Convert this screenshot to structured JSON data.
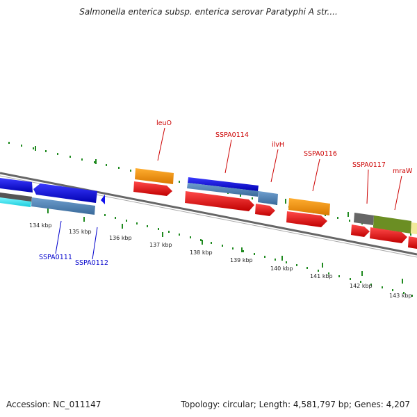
{
  "title": "Salmonella enterica subsp. enterica serovar Paratyphi A str....",
  "footer": {
    "accession": "Accession: NC_011147",
    "summary": "Topology: circular; Length: 4,581,797 bp; Genes: 4,207"
  },
  "colors": {
    "backbone": "#777777",
    "ticks": "#1f8a1f",
    "label_upper": "#cc0000",
    "label_lower": "#0000cc"
  },
  "ruler_labels": [
    "134 kbp",
    "135 kbp",
    "136 kbp",
    "137 kbp",
    "138 kbp",
    "139 kbp",
    "140 kbp",
    "141 kbp",
    "142 kbp",
    "143 kbp"
  ],
  "gene_labels_upper": [
    "leuO",
    "SSPA0114",
    "ilvH",
    "SSPA0116",
    "SSPA0117",
    "mraW"
  ],
  "gene_labels_lower": [
    "SSPA0111",
    "SSPA0112"
  ]
}
